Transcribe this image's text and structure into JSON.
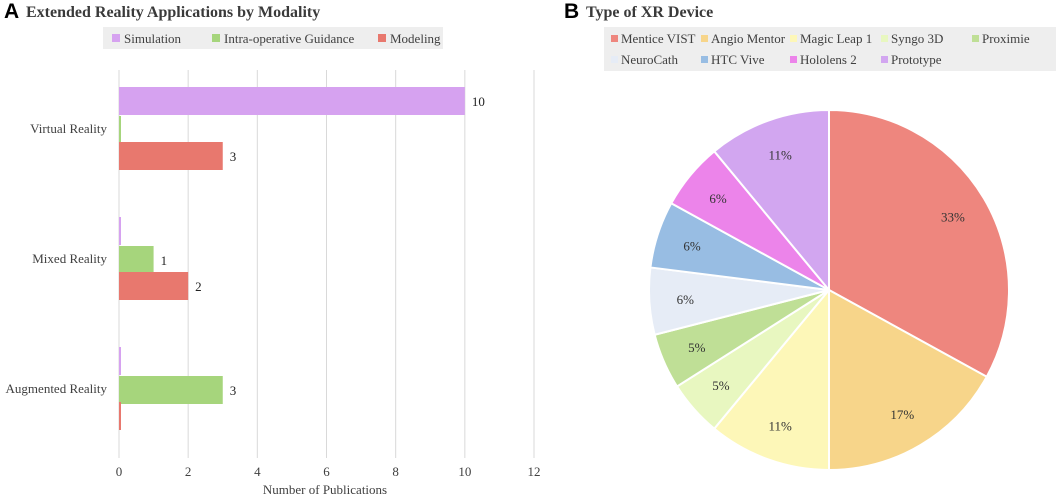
{
  "chart_data": [
    {
      "type": "bar",
      "orientation": "horizontal",
      "panel": "A",
      "title": "Extended Reality Applications by Modality",
      "categories": [
        "Virtual Reality",
        "Mixed Reality",
        "Augmented Reality"
      ],
      "series": [
        {
          "name": "Simulation",
          "color": "#d6a2f0",
          "values": [
            10,
            0,
            0
          ]
        },
        {
          "name": "Intra-operative Guidance",
          "color": "#a6d57c",
          "values": [
            0,
            1,
            3
          ]
        },
        {
          "name": "Modeling",
          "color": "#e8786e",
          "values": [
            3,
            2,
            0
          ]
        }
      ],
      "data_labels": [
        [
          "10",
          "",
          "3"
        ],
        [
          "",
          "1",
          "2"
        ],
        [
          "",
          "3",
          ""
        ]
      ],
      "xlabel": "Number of Publications",
      "xlim": [
        0,
        12
      ],
      "xticks": [
        0,
        2,
        4,
        6,
        8,
        10,
        12
      ],
      "grid": true,
      "legend_position": "top"
    },
    {
      "type": "pie",
      "panel": "B",
      "title": "Type of XR Device",
      "slices": [
        {
          "name": "Mentice VIST",
          "value": 33,
          "label": "33%",
          "color": "#ee867e"
        },
        {
          "name": "Angio Mentor",
          "value": 17,
          "label": "17%",
          "color": "#f7d58a"
        },
        {
          "name": "Magic Leap 1",
          "value": 11,
          "label": "11%",
          "color": "#fdf7b8"
        },
        {
          "name": "Syngo 3D",
          "value": 5,
          "label": "5%",
          "color": "#e8f7c0"
        },
        {
          "name": "Proximie",
          "value": 5,
          "label": "5%",
          "color": "#bfdf96"
        },
        {
          "name": "NeuroCath",
          "value": 6,
          "label": "6%",
          "color": "#e6ecf6"
        },
        {
          "name": "HTC Vive",
          "value": 6,
          "label": "6%",
          "color": "#98bde3"
        },
        {
          "name": "Hololens 2",
          "value": 6,
          "label": "6%",
          "color": "#ec84ea"
        },
        {
          "name": "Prototype",
          "value": 11,
          "label": "11%",
          "color": "#d2a6f0"
        }
      ],
      "legend_position": "top"
    }
  ]
}
